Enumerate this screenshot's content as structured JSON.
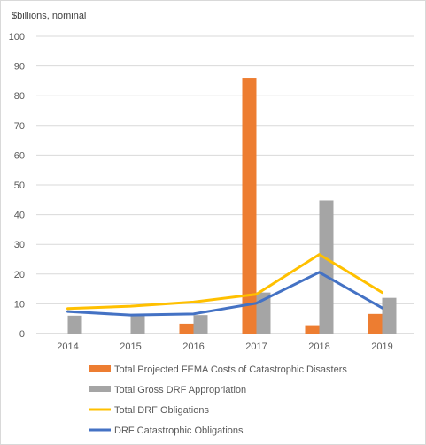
{
  "chart_data": {
    "type": "bar",
    "ylabel": "$billions, nominal",
    "ylim": [
      0,
      100
    ],
    "yticks": [
      0,
      10,
      20,
      30,
      40,
      50,
      60,
      70,
      80,
      90,
      100
    ],
    "grid": true,
    "legend_position": "bottom",
    "categories": [
      "2014",
      "2015",
      "2016",
      "2017",
      "2018",
      "2019"
    ],
    "series": [
      {
        "name": "Total Projected FEMA Costs of Catastrophic Disasters",
        "kind": "bar",
        "color": "#ED7D31",
        "values": [
          0,
          0,
          3.3,
          86,
          2.8,
          6.6
        ]
      },
      {
        "name": "Total Gross DRF Appropriation",
        "kind": "bar",
        "color": "#A5A5A5",
        "values": [
          6,
          6.5,
          6.2,
          13.8,
          44.8,
          12
        ]
      },
      {
        "name": "Total DRF Obligations",
        "kind": "line",
        "color": "#FFC000",
        "values": [
          8.4,
          9.2,
          10.6,
          13.2,
          26.6,
          13.8
        ]
      },
      {
        "name": "DRF Catastrophic Obligations",
        "kind": "line",
        "color": "#4472C4",
        "values": [
          7.4,
          6.2,
          6.6,
          10.2,
          20.6,
          8.6
        ]
      }
    ]
  }
}
